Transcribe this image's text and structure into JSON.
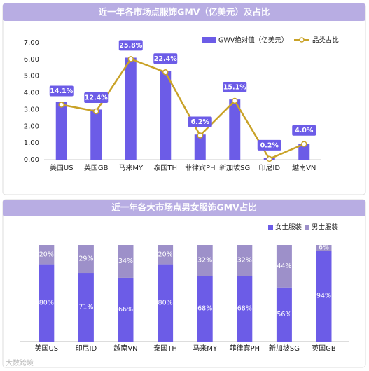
{
  "chart_data": [
    {
      "type": "bar",
      "title": "近一年各市场点服饰GMV（亿美元）及占比",
      "categories": [
        "美国US",
        "英国GB",
        "马来MY",
        "泰国TH",
        "菲律宾PH",
        "新加坡SG",
        "印尼ID",
        "越南VN"
      ],
      "series": [
        {
          "name": "GWV绝对值（亿美元）",
          "color": "#6c5ce7",
          "values": [
            3.45,
            3.0,
            6.1,
            5.3,
            1.5,
            3.6,
            0.1,
            0.95
          ]
        },
        {
          "name": "品类占比",
          "color": "#c9a227",
          "axis": "y2",
          "values": [
            14.1,
            12.4,
            25.8,
            22.4,
            6.2,
            15.1,
            0.2,
            4.0
          ],
          "value_labels": [
            "14.1%",
            "12.4%",
            "25.8%",
            "22.4%",
            "6.2%",
            "15.1%",
            "0.2%",
            "4.0%"
          ]
        }
      ],
      "ylim": [
        0,
        7
      ],
      "yticks": [
        {
          "value": 0,
          "label": "0.00"
        },
        {
          "value": 1,
          "label": "1.00"
        },
        {
          "value": 2,
          "label": "2.00"
        },
        {
          "value": 3,
          "label": "3.00"
        },
        {
          "value": 4,
          "label": "4.00"
        },
        {
          "value": 5,
          "label": "5.00"
        },
        {
          "value": 6,
          "label": "6.00"
        },
        {
          "value": 7,
          "label": "7.00"
        }
      ],
      "y2lim": [
        0,
        30
      ],
      "grid": false,
      "legend": "top-right"
    },
    {
      "type": "stacked_bar",
      "title": "近一年各大市场点男女服饰GMV占比",
      "categories": [
        "美国US",
        "印尼ID",
        "越南VN",
        "泰国TH",
        "马来MY",
        "菲律宾PH",
        "新加坡SG",
        "英国GB"
      ],
      "series": [
        {
          "name": "女士服装",
          "color": "#6c5ce7",
          "values": [
            80,
            71,
            66,
            80,
            68,
            68,
            56,
            94
          ],
          "value_labels": [
            "80%",
            "71%",
            "66%",
            "80%",
            "68%",
            "68%",
            "56%",
            "94%"
          ]
        },
        {
          "name": "男士服装",
          "color": "#9d90c9",
          "values": [
            20,
            29,
            34,
            20,
            32,
            32,
            44,
            6
          ],
          "value_labels": [
            "20%",
            "29%",
            "34%",
            "20%",
            "32%",
            "32%",
            "44%",
            "6%"
          ]
        }
      ],
      "ylim": [
        0,
        100
      ],
      "grid": false,
      "legend": "top-right"
    }
  ],
  "watermark": "大数跨境"
}
